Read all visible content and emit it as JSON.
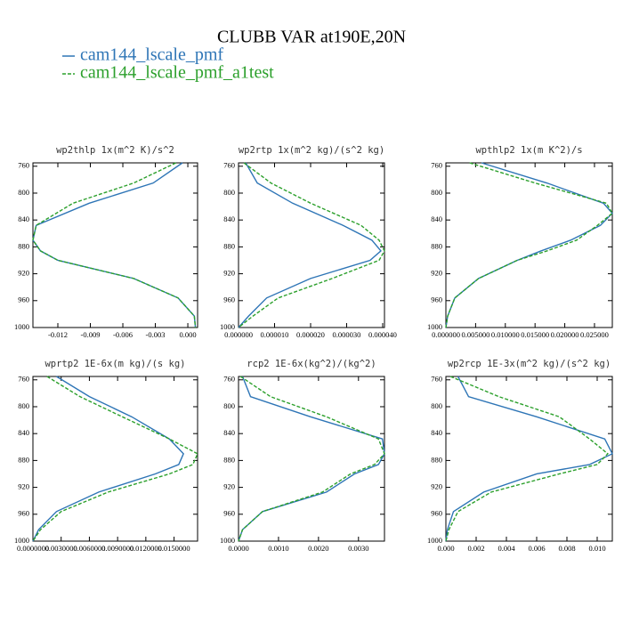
{
  "title": "CLUBB VAR at190E,20N",
  "legend": [
    {
      "name": "cam144_lscale_pmf",
      "color": "#2e75b6",
      "dashed": false
    },
    {
      "name": "cam144_lscale_pmf_a1test",
      "color": "#2ca02c",
      "dashed": true
    }
  ],
  "chart_data": [
    {
      "type": "line",
      "title": "wp2thlp  1x(m^2 K)/s^2",
      "y_inverted": true,
      "y": [
        755,
        785,
        815,
        848,
        870,
        886,
        900,
        927,
        956,
        983,
        1000
      ],
      "series": [
        {
          "values": [
            -0.0005,
            -0.0032,
            -0.0091,
            -0.014,
            -0.0143,
            -0.0136,
            -0.012,
            -0.005,
            -0.0009,
            0.0006,
            0.0007
          ]
        },
        {
          "values": [
            -0.0011,
            -0.005,
            -0.0106,
            -0.014,
            -0.0143,
            -0.0136,
            -0.012,
            -0.005,
            -0.0009,
            0.0006,
            0.0007
          ]
        }
      ],
      "xlim": [
        -0.0143,
        0.0009
      ],
      "xticks": [
        -0.012,
        -0.009,
        -0.006,
        -0.003,
        {
          "value": 0,
          "label": "0.000"
        }
      ],
      "ylim": [
        755,
        1000
      ],
      "yticks": [
        760,
        800,
        840,
        880,
        920,
        960,
        1000
      ]
    },
    {
      "type": "line",
      "title": "wp2rtp  1x(m^2 kg)/(s^2 kg)",
      "y_inverted": true,
      "y": [
        755,
        785,
        815,
        848,
        870,
        886,
        900,
        927,
        956,
        983,
        1000
      ],
      "series": [
        {
          "values": [
            2e-06,
            5.2e-06,
            1.5e-05,
            2.9e-05,
            3.7e-05,
            3.95e-05,
            3.65e-05,
            2e-05,
            7.8e-06,
            2.8e-06,
            0
          ]
        },
        {
          "values": [
            1.5e-06,
            9e-06,
            2e-05,
            3.4e-05,
            3.9e-05,
            4.05e-05,
            3.9e-05,
            2.6e-05,
            1.1e-05,
            4e-06,
            0
          ]
        }
      ],
      "xlim": [
        0,
        4.05e-05
      ],
      "xticks": [
        {
          "value": 0,
          "label": "0.000000"
        },
        {
          "value": 1e-05,
          "label": "0.000010"
        },
        {
          "value": 2e-05,
          "label": "0.000020"
        },
        {
          "value": 3e-05,
          "label": "0.000030"
        },
        {
          "value": 4e-05,
          "label": "0.000040"
        }
      ],
      "ylim": [
        755,
        1000
      ],
      "yticks": [
        760,
        800,
        840,
        880,
        920,
        960,
        1000
      ]
    },
    {
      "type": "line",
      "title": "wpthlp2  1x(m K^2)/s",
      "y_inverted": true,
      "y": [
        755,
        785,
        815,
        830,
        848,
        870,
        886,
        900,
        927,
        956,
        983,
        1000
      ],
      "series": [
        {
          "values": [
            0.006,
            0.017,
            0.0265,
            0.028,
            0.026,
            0.021,
            0.016,
            0.012,
            0.0055,
            0.0015,
            0.0003,
            0
          ]
        },
        {
          "values": [
            0.004,
            0.015,
            0.027,
            0.028,
            0.0255,
            0.022,
            0.017,
            0.012,
            0.0055,
            0.0015,
            0.0003,
            0
          ]
        }
      ],
      "xlim": [
        0,
        0.028
      ],
      "xticks": [
        {
          "value": 0,
          "label": "0.000000"
        },
        {
          "value": 0.005,
          "label": "0.005000"
        },
        {
          "value": 0.01,
          "label": "0.010000"
        },
        {
          "value": 0.015,
          "label": "0.015000"
        },
        {
          "value": 0.02,
          "label": "0.020000"
        },
        {
          "value": 0.025,
          "label": "0.025000"
        }
      ],
      "ylim": [
        755,
        1000
      ],
      "yticks": [
        760,
        800,
        840,
        880,
        920,
        960,
        1000
      ]
    },
    {
      "type": "line",
      "title": "wprtp2  1E-6x(m kg)/(s kg)",
      "y_inverted": true,
      "y": [
        755,
        785,
        815,
        848,
        870,
        886,
        900,
        927,
        956,
        983,
        1000
      ],
      "series": [
        {
          "values": [
            0.0025,
            0.006,
            0.0105,
            0.0145,
            0.016,
            0.0155,
            0.013,
            0.007,
            0.0025,
            0.0006,
            0
          ]
        },
        {
          "values": [
            0.0015,
            0.005,
            0.0095,
            0.0145,
            0.0175,
            0.017,
            0.0145,
            0.008,
            0.003,
            0.0008,
            0
          ]
        }
      ],
      "xlim": [
        0,
        0.0175
      ],
      "xticks": [
        {
          "value": 0,
          "label": "0.0000000"
        },
        {
          "value": 0.003,
          "label": "0.0030000"
        },
        {
          "value": 0.006,
          "label": "0.0060000"
        },
        {
          "value": 0.009,
          "label": "0.0090000"
        },
        {
          "value": 0.012,
          "label": "0.0120000"
        },
        {
          "value": 0.015,
          "label": "0.0150000"
        }
      ],
      "ylim": [
        755,
        1000
      ],
      "yticks": [
        760,
        800,
        840,
        880,
        920,
        960,
        1000
      ]
    },
    {
      "type": "line",
      "title": "rcp2  1E-6x(kg^2)/(kg^2)",
      "y_inverted": true,
      "y": [
        755,
        785,
        815,
        848,
        870,
        886,
        900,
        927,
        956,
        983,
        1000
      ],
      "series": [
        {
          "values": [
            0.0001,
            0.0003,
            0.0018,
            0.0036,
            0.00365,
            0.0035,
            0.0029,
            0.0022,
            0.0006,
            0.0001,
            0
          ]
        },
        {
          "values": [
            5e-05,
            0.0008,
            0.0022,
            0.0035,
            0.00365,
            0.0034,
            0.0028,
            0.0021,
            0.0006,
            0.0001,
            0
          ]
        }
      ],
      "xlim": [
        0,
        0.00365
      ],
      "xticks": [
        {
          "value": 0,
          "label": "0.0000"
        },
        {
          "value": 0.001,
          "label": "0.0010"
        },
        {
          "value": 0.002,
          "label": "0.0020"
        },
        {
          "value": 0.003,
          "label": "0.0030"
        }
      ],
      "ylim": [
        755,
        1000
      ],
      "yticks": [
        760,
        800,
        840,
        880,
        920,
        960,
        1000
      ]
    },
    {
      "type": "line",
      "title": "wp2rcp  1E-3x(m^2 kg)/(s^2 kg)",
      "y_inverted": true,
      "y": [
        755,
        785,
        815,
        848,
        870,
        886,
        900,
        927,
        956,
        983,
        1000
      ],
      "series": [
        {
          "values": [
            0.0008,
            0.0015,
            0.006,
            0.0105,
            0.011,
            0.0095,
            0.006,
            0.0025,
            0.0005,
            0.0001,
            0
          ]
        },
        {
          "values": [
            0.0003,
            0.0035,
            0.0075,
            0.0095,
            0.0107,
            0.01,
            0.0075,
            0.003,
            0.0008,
            0.0002,
            0
          ]
        }
      ],
      "xlim": [
        0,
        0.011
      ],
      "xticks": [
        {
          "value": 0,
          "label": "0.000"
        },
        {
          "value": 0.002,
          "label": "0.002"
        },
        {
          "value": 0.004,
          "label": "0.004"
        },
        {
          "value": 0.006,
          "label": "0.006"
        },
        {
          "value": 0.008,
          "label": "0.008"
        },
        {
          "value": 0.01,
          "label": "0.010"
        }
      ],
      "ylim": [
        755,
        1000
      ],
      "yticks": [
        760,
        800,
        840,
        880,
        920,
        960,
        1000
      ]
    }
  ]
}
